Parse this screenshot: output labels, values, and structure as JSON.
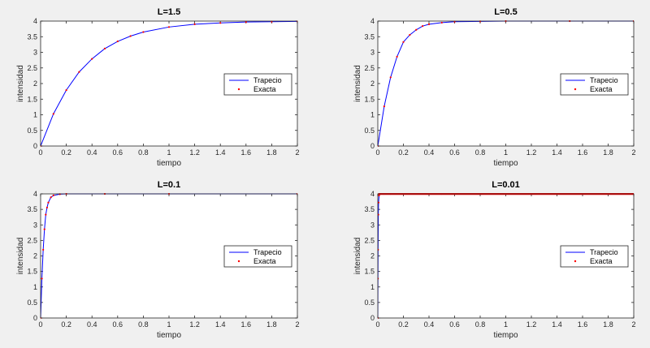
{
  "window": {
    "background": "#f0f0f0"
  },
  "colors": {
    "trapecio": "#0000ff",
    "exacta": "#ff0000",
    "axes_bg": "#ffffff",
    "axis": "#262626"
  },
  "legend": {
    "trapecio": "Trapecio",
    "exacta": "Exacta",
    "placement": "right-middle"
  },
  "chart_data": [
    {
      "type": "line",
      "title": "L=1.5",
      "xlabel": "tiempo",
      "ylabel": "intensidad",
      "xlim": [
        0,
        2
      ],
      "ylim": [
        0,
        4
      ],
      "xticks": [
        "0",
        "0.2",
        "0.4",
        "0.6",
        "0.8",
        "1",
        "1.2",
        "1.4",
        "1.6",
        "1.8",
        "2"
      ],
      "yticks": [
        "0",
        "0.5",
        "1",
        "1.5",
        "2",
        "2.5",
        "3",
        "3.5",
        "4"
      ],
      "grid": false,
      "series": [
        {
          "name": "Trapecio",
          "style": "line",
          "x": [
            0,
            0.1,
            0.2,
            0.3,
            0.4,
            0.5,
            0.6,
            0.7,
            0.8,
            1.0,
            1.2,
            1.4,
            1.6,
            1.8,
            2.0
          ],
          "y": [
            0,
            1.03,
            1.79,
            2.37,
            2.79,
            3.12,
            3.35,
            3.52,
            3.65,
            3.81,
            3.9,
            3.94,
            3.97,
            3.98,
            3.99
          ]
        },
        {
          "name": "Exacta",
          "style": "markers",
          "x": [
            0,
            0.1,
            0.2,
            0.3,
            0.4,
            0.5,
            0.6,
            0.7,
            0.8,
            1.0,
            1.2,
            1.4,
            1.6,
            1.8,
            2.0
          ],
          "y": [
            0,
            1.03,
            1.79,
            2.37,
            2.79,
            3.12,
            3.35,
            3.52,
            3.65,
            3.81,
            3.9,
            3.94,
            3.97,
            3.98,
            3.99
          ]
        }
      ]
    },
    {
      "type": "line",
      "title": "L=0.5",
      "xlabel": "tiempo",
      "ylabel": "intensidad",
      "xlim": [
        0,
        2
      ],
      "ylim": [
        0,
        4
      ],
      "xticks": [
        "0",
        "0.2",
        "0.4",
        "0.6",
        "0.8",
        "1",
        "1.2",
        "1.4",
        "1.6",
        "1.8",
        "2"
      ],
      "yticks": [
        "0",
        "0.5",
        "1",
        "1.5",
        "2",
        "2.5",
        "3",
        "3.5",
        "4"
      ],
      "grid": false,
      "series": [
        {
          "name": "Trapecio",
          "style": "line",
          "x": [
            0,
            0.05,
            0.1,
            0.15,
            0.2,
            0.25,
            0.3,
            0.35,
            0.4,
            0.5,
            0.6,
            0.8,
            1.0,
            1.5,
            2.0
          ],
          "y": [
            0,
            1.27,
            2.2,
            2.86,
            3.33,
            3.56,
            3.72,
            3.84,
            3.9,
            3.95,
            3.98,
            3.99,
            4.0,
            4.0,
            4.0
          ]
        },
        {
          "name": "Exacta",
          "style": "markers",
          "x": [
            0,
            0.05,
            0.1,
            0.15,
            0.2,
            0.25,
            0.3,
            0.35,
            0.4,
            0.5,
            0.6,
            0.8,
            1.0,
            1.5,
            2.0
          ],
          "y": [
            0,
            1.27,
            2.2,
            2.86,
            3.33,
            3.56,
            3.72,
            3.84,
            3.9,
            3.95,
            3.98,
            3.99,
            4.0,
            4.0,
            4.0
          ]
        }
      ]
    },
    {
      "type": "line",
      "title": "L=0.1",
      "xlabel": "tiempo",
      "ylabel": "intensidad",
      "xlim": [
        0,
        2
      ],
      "ylim": [
        0,
        4
      ],
      "xticks": [
        "0",
        "0.2",
        "0.4",
        "0.6",
        "0.8",
        "1",
        "1.2",
        "1.4",
        "1.6",
        "1.8",
        "2"
      ],
      "yticks": [
        "0",
        "0.5",
        "1",
        "1.5",
        "2",
        "2.5",
        "3",
        "3.5",
        "4"
      ],
      "grid": false,
      "series": [
        {
          "name": "Trapecio",
          "style": "line",
          "x": [
            0,
            0.01,
            0.02,
            0.03,
            0.04,
            0.05,
            0.06,
            0.08,
            0.1,
            0.15,
            0.2,
            0.5,
            1.0,
            2.0
          ],
          "y": [
            0,
            1.27,
            2.2,
            2.86,
            3.33,
            3.56,
            3.72,
            3.89,
            3.95,
            3.99,
            4.0,
            4.0,
            4.0,
            4.0
          ]
        },
        {
          "name": "Exacta",
          "style": "markers",
          "x": [
            0,
            0.01,
            0.02,
            0.03,
            0.04,
            0.05,
            0.06,
            0.08,
            0.1,
            0.15,
            0.2,
            0.5,
            1.0,
            2.0
          ],
          "y": [
            0,
            1.27,
            2.2,
            2.86,
            3.33,
            3.56,
            3.72,
            3.89,
            3.95,
            3.99,
            4.0,
            4.0,
            4.0,
            4.0
          ]
        }
      ]
    },
    {
      "type": "line",
      "title": "L=0.01",
      "xlabel": "tiempo",
      "ylabel": "intensidad",
      "xlim": [
        0,
        2
      ],
      "ylim": [
        0,
        4
      ],
      "xticks": [
        "0",
        "0.2",
        "0.4",
        "0.6",
        "0.8",
        "1",
        "1.2",
        "1.4",
        "1.6",
        "1.8",
        "2"
      ],
      "yticks": [
        "0",
        "0.5",
        "1",
        "1.5",
        "2",
        "2.5",
        "3",
        "3.5",
        "4"
      ],
      "grid": false,
      "series": [
        {
          "name": "Trapecio",
          "style": "line",
          "x": [
            0,
            0.001,
            0.002,
            0.004,
            0.006,
            0.01,
            0.02,
            0.05,
            0.1,
            0.5,
            1.0,
            2.0
          ],
          "y": [
            0,
            1.27,
            2.2,
            3.33,
            3.72,
            3.95,
            4.0,
            4.0,
            4.0,
            4.0,
            4.0,
            4.0
          ]
        },
        {
          "name": "Exacta",
          "style": "markers",
          "x": [
            0,
            0.001,
            0.002,
            0.004,
            0.006,
            0.01,
            0.02,
            0.05,
            0.1,
            0.5,
            1.0,
            2.0
          ],
          "y": [
            0,
            1.27,
            2.2,
            3.33,
            3.72,
            3.95,
            4.0,
            4.0,
            4.0,
            4.0,
            4.0,
            4.0
          ]
        }
      ]
    }
  ]
}
